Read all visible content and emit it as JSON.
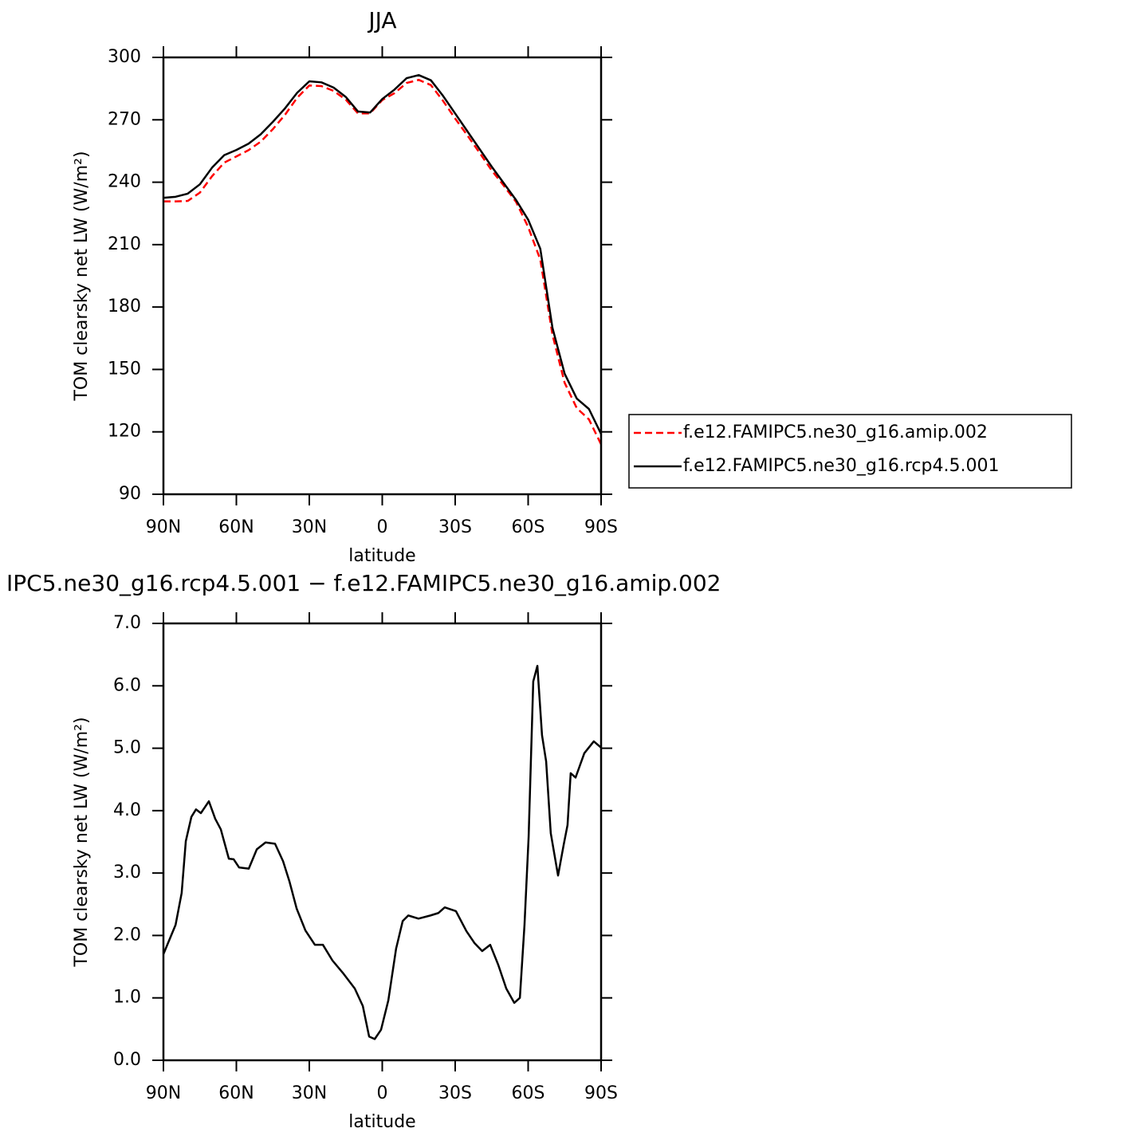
{
  "chart_data": [
    {
      "type": "line",
      "title": "JJA",
      "x_label": "latitude",
      "y_label": "TOM clearsky net LW (W/m²)",
      "x": [
        90,
        85,
        80,
        75,
        70,
        65,
        60,
        55,
        50,
        45,
        40,
        35,
        30,
        25,
        20,
        15,
        10,
        5,
        0,
        -5,
        -10,
        -15,
        -20,
        -25,
        -30,
        -35,
        -40,
        -45,
        -50,
        -55,
        -60,
        -65,
        -70,
        -75,
        -80,
        -85,
        -90
      ],
      "series": [
        {
          "name": "f.e12.FAMIPC5.ne30_g16.amip.002",
          "color": "#ff0000",
          "dash": "dashed",
          "values": [
            230.8,
            230.8,
            231,
            235,
            242.9,
            249.4,
            252.4,
            255.4,
            259.5,
            265.5,
            272.4,
            280.6,
            286.5,
            286.2,
            283.9,
            279.7,
            273.1,
            273.1,
            279.5,
            282.8,
            287.7,
            289.2,
            286.7,
            279.1,
            270.6,
            262.5,
            254.2,
            245.7,
            238.3,
            230.6,
            218.5,
            202.8,
            166.7,
            143.6,
            131.4,
            126,
            114
          ]
        },
        {
          "name": "f.e12.FAMIPC5.ne30_g16.rcp4.5.001",
          "color": "#000000",
          "dash": "solid",
          "values": [
            232.5,
            233,
            234.5,
            239,
            247,
            253,
            255.5,
            258.5,
            263,
            269,
            275.5,
            283,
            288.5,
            288,
            285.5,
            281,
            274,
            273.5,
            280,
            284.5,
            290,
            291.5,
            289,
            281.5,
            273,
            264.5,
            256,
            247.5,
            239.5,
            231.5,
            222,
            208,
            170,
            148,
            136,
            131,
            119
          ]
        }
      ],
      "xlim": [
        90,
        -90
      ],
      "ylim": [
        90,
        300
      ],
      "xticks": [
        {
          "value": 90,
          "label": "90N"
        },
        {
          "value": 60,
          "label": "60N"
        },
        {
          "value": 30,
          "label": "30N"
        },
        0,
        {
          "value": -30,
          "label": "30S"
        },
        {
          "value": -60,
          "label": "60S"
        },
        {
          "value": -90,
          "label": "90S"
        }
      ],
      "yticks": [
        90,
        120,
        150,
        180,
        210,
        240,
        270,
        300
      ],
      "legend": "right"
    },
    {
      "type": "line",
      "title": "IPC5.ne30_g16.rcp4.5.001 − f.e12.FAMIPC5.ne30_g16.amip.002",
      "x_label": "latitude",
      "y_label": "TOM clearsky net LW (W/m²)",
      "x": [
        90,
        85,
        82.5,
        80.8,
        78.5,
        76.6,
        74.6,
        71.3,
        68.7,
        66.4,
        63.1,
        61.1,
        58.9,
        54.9,
        51.6,
        48,
        44.1,
        40.8,
        38.2,
        35.2,
        31.6,
        27.7,
        24.4,
        20.5,
        16.2,
        11.3,
        8,
        5.4,
        3.1,
        0.5,
        -2.5,
        -5.7,
        -8.4,
        -10.7,
        -14.9,
        -19.8,
        -23.1,
        -25.7,
        -30.3,
        -34.6,
        -37.9,
        -41.1,
        -44.4,
        -47.7,
        -51,
        -54.3,
        -56.6,
        -58.5,
        -60.2,
        -62.1,
        -63.8,
        -65.7,
        -67.4,
        -69.3,
        -72.3,
        -74.6,
        -76.2,
        -77.5,
        -79.5,
        -83.1,
        -87,
        -90
      ],
      "series": [
        {
          "color": "#000000",
          "dash": "solid",
          "values": [
            1.7,
            2.17,
            2.68,
            3.51,
            3.9,
            4.02,
            3.96,
            4.15,
            3.87,
            3.7,
            3.23,
            3.22,
            3.09,
            3.07,
            3.38,
            3.49,
            3.47,
            3.19,
            2.87,
            2.43,
            2.08,
            1.85,
            1.85,
            1.6,
            1.4,
            1.15,
            0.87,
            0.38,
            0.34,
            0.49,
            0.96,
            1.79,
            2.23,
            2.32,
            2.27,
            2.32,
            2.36,
            2.45,
            2.39,
            2.07,
            1.88,
            1.75,
            1.85,
            1.53,
            1.15,
            0.92,
            1.0,
            2.17,
            3.58,
            6.07,
            6.32,
            5.21,
            4.79,
            3.64,
            2.96,
            3.45,
            3.77,
            4.6,
            4.53,
            4.92,
            5.11,
            5.01
          ]
        }
      ],
      "xlim": [
        90,
        -90
      ],
      "ylim": [
        0,
        7
      ],
      "xticks": [
        {
          "value": 90,
          "label": "90N"
        },
        {
          "value": 60,
          "label": "60N"
        },
        {
          "value": 30,
          "label": "30N"
        },
        0,
        {
          "value": -30,
          "label": "30S"
        },
        {
          "value": -60,
          "label": "60S"
        },
        {
          "value": -90,
          "label": "90S"
        }
      ],
      "yticks": [
        {
          "value": 0,
          "label": "0.0"
        },
        {
          "value": 1,
          "label": "1.0"
        },
        {
          "value": 2,
          "label": "2.0"
        },
        {
          "value": 3,
          "label": "3.0"
        },
        {
          "value": 4,
          "label": "4.0"
        },
        {
          "value": 5,
          "label": "5.0"
        },
        {
          "value": 6,
          "label": "6.0"
        },
        {
          "value": 7,
          "label": "7.0"
        }
      ]
    }
  ]
}
